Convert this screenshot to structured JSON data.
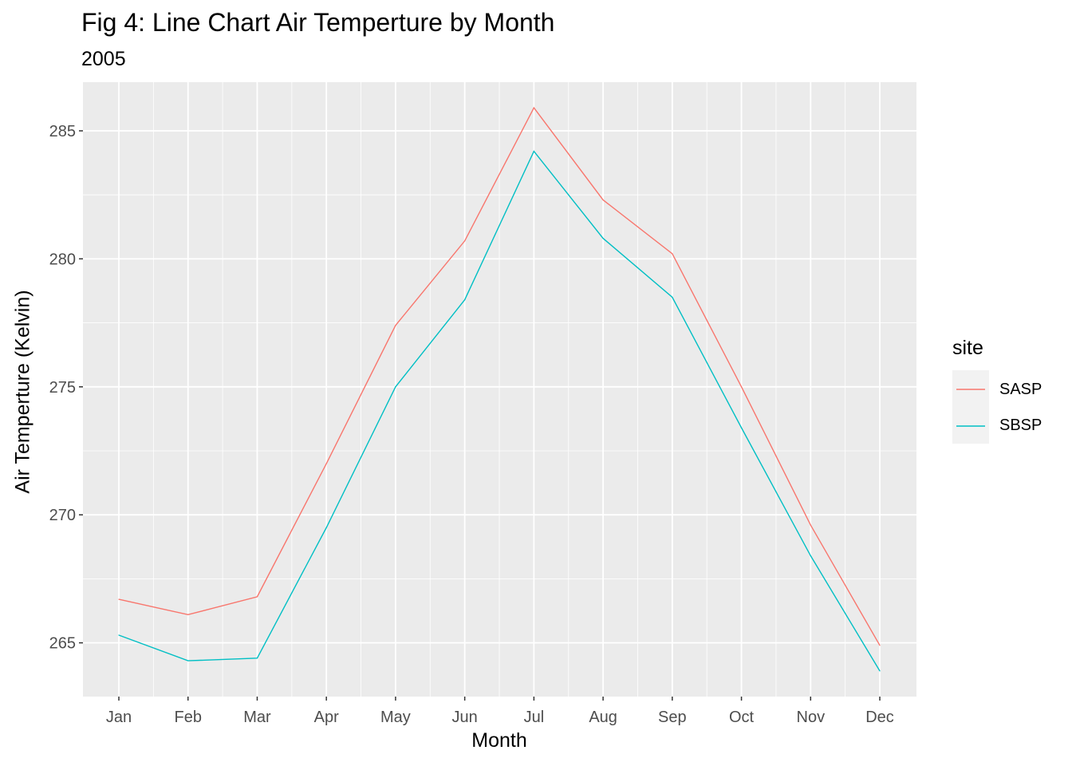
{
  "chart_data": {
    "type": "line",
    "title": "Fig 4: Line Chart Air Temperture by Month",
    "subtitle": "2005",
    "xlabel": "Month",
    "ylabel": "Air Temperture (Kelvin)",
    "categories": [
      "Jan",
      "Feb",
      "Mar",
      "Apr",
      "May",
      "Jun",
      "Jul",
      "Aug",
      "Sep",
      "Oct",
      "Nov",
      "Dec"
    ],
    "yticks": [
      265,
      270,
      275,
      280,
      285
    ],
    "ylim": [
      262.9,
      286.9
    ],
    "grid": true,
    "legend_title": "site",
    "legend_position": "right",
    "series": [
      {
        "name": "SASP",
        "color": "#F8766D",
        "values": [
          266.7,
          266.1,
          266.8,
          272.0,
          277.4,
          280.7,
          285.9,
          282.3,
          280.2,
          275.0,
          269.6,
          264.9
        ]
      },
      {
        "name": "SBSP",
        "color": "#00BFC4",
        "values": [
          265.3,
          264.3,
          264.4,
          269.5,
          275.0,
          278.4,
          284.2,
          280.8,
          278.5,
          273.4,
          268.4,
          263.9
        ]
      }
    ]
  }
}
